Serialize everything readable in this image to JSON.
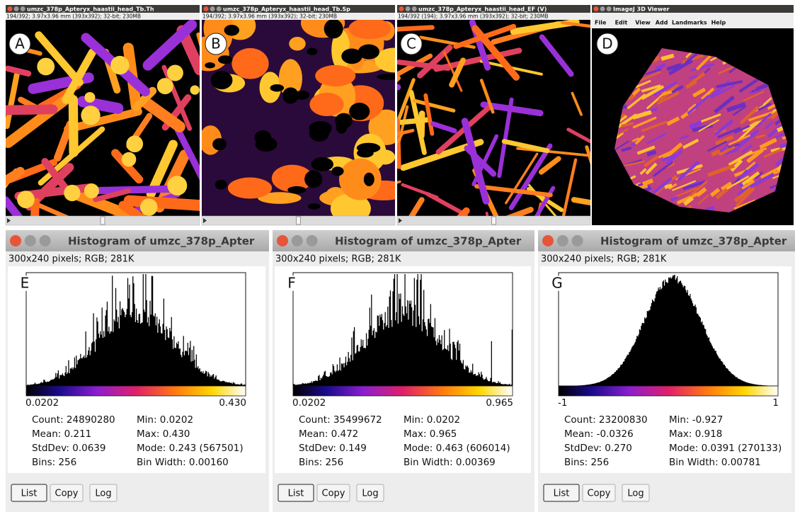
{
  "top_windows": [
    {
      "label": "A",
      "title": "umzc_378p_Apteryx_haastii_head_Tb.Th",
      "info": "194/392; 3.97x3.96 mm (393x392); 32-bit; 230MB"
    },
    {
      "label": "B",
      "title": "umzc_378p_Apteryx_haastii_head_Tb.Sp",
      "info": "194/392; 3.97x3.96 mm (393x392); 32-bit; 230MB"
    },
    {
      "label": "C",
      "title": "umzc_378p_Apteryx_haastii_head_EF (V)",
      "info": "194/392 (194); 3.97x3.96 mm (393x392); 32-bit; 230MB"
    }
  ],
  "viewer": {
    "label": "D",
    "title": "ImageJ 3D Viewer",
    "menu": [
      "File",
      "Edit",
      "View",
      "Add",
      "Landmarks",
      "Help"
    ]
  },
  "histograms": [
    {
      "label": "E",
      "title": "Histogram of umzc_378p_Apter",
      "info": "300x240 pixels; RGB; 281K",
      "min": "0.0202",
      "max": "0.430",
      "stats": [
        [
          "Count: 24890280",
          "Min: 0.0202"
        ],
        [
          "Mean: 0.211",
          "Max: 0.430"
        ],
        [
          "StdDev: 0.0639",
          "Mode: 0.243 (567501)"
        ],
        [
          "Bins: 256",
          "Bin Width: 0.00160"
        ]
      ],
      "buttons": [
        "List",
        "Copy",
        "Log"
      ]
    },
    {
      "label": "F",
      "title": "Histogram of umzc_378p_Apter",
      "info": "300x240 pixels; RGB; 281K",
      "min": "0.0202",
      "max": "0.965",
      "stats": [
        [
          "Count: 35499672",
          "Min: 0.0202"
        ],
        [
          "Mean: 0.472",
          "Max: 0.965"
        ],
        [
          "StdDev: 0.149",
          "Mode: 0.463 (606014)"
        ],
        [
          "Bins: 256",
          "Bin Width: 0.00369"
        ]
      ],
      "buttons": [
        "List",
        "Copy",
        "Log"
      ]
    },
    {
      "label": "G",
      "title": "Histogram of umzc_378p_Apter",
      "info": "300x240 pixels; RGB; 281K",
      "min": "-1",
      "max": "1",
      "stats": [
        [
          "Count: 23200830",
          "Min: -0.927"
        ],
        [
          "Mean: -0.0326",
          "Max: 0.918"
        ],
        [
          "StdDev: 0.270",
          "Mode: 0.0391 (270133)"
        ],
        [
          "Bins: 256",
          "Bin Width: 0.00781"
        ]
      ],
      "buttons": [
        "List",
        "Copy",
        "Log"
      ]
    }
  ]
}
